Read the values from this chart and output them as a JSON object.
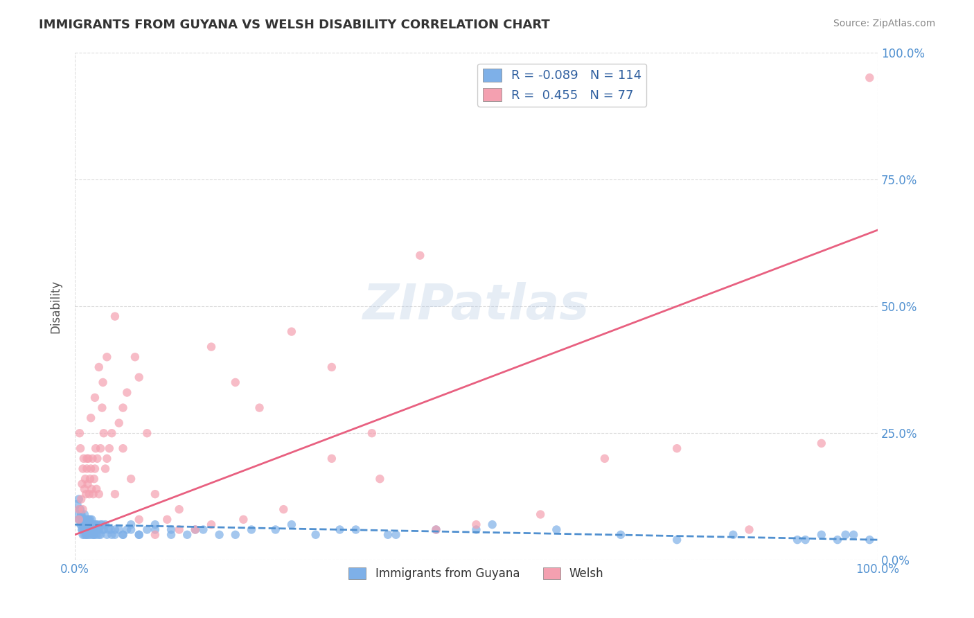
{
  "title": "IMMIGRANTS FROM GUYANA VS WELSH DISABILITY CORRELATION CHART",
  "source": "Source: ZipAtlas.com",
  "xlabel": "",
  "ylabel": "Disability",
  "xlim": [
    0.0,
    1.0
  ],
  "ylim": [
    0.0,
    1.0
  ],
  "xtick_labels": [
    "0.0%",
    "100.0%"
  ],
  "ytick_labels": [
    "0.0%",
    "25.0%",
    "50.0%",
    "75.0%",
    "100.0%"
  ],
  "ytick_positions": [
    0.0,
    0.25,
    0.5,
    0.75,
    1.0
  ],
  "blue_color": "#7EB0E8",
  "pink_color": "#F4A0B0",
  "blue_line_color": "#5090D0",
  "pink_line_color": "#E86080",
  "legend_R_blue": "-0.089",
  "legend_N_blue": "114",
  "legend_R_pink": "0.455",
  "legend_N_pink": "77",
  "watermark": "ZIPatlas",
  "blue_scatter_x": [
    0.005,
    0.006,
    0.007,
    0.008,
    0.008,
    0.009,
    0.009,
    0.01,
    0.01,
    0.011,
    0.011,
    0.012,
    0.012,
    0.013,
    0.013,
    0.014,
    0.014,
    0.015,
    0.015,
    0.016,
    0.016,
    0.017,
    0.017,
    0.018,
    0.018,
    0.019,
    0.019,
    0.02,
    0.02,
    0.021,
    0.022,
    0.022,
    0.023,
    0.024,
    0.025,
    0.026,
    0.027,
    0.028,
    0.03,
    0.032,
    0.034,
    0.036,
    0.04,
    0.045,
    0.05,
    0.055,
    0.06,
    0.065,
    0.07,
    0.08,
    0.09,
    0.1,
    0.12,
    0.14,
    0.16,
    0.2,
    0.25,
    0.3,
    0.35,
    0.4,
    0.5,
    0.003,
    0.004,
    0.005,
    0.006,
    0.007,
    0.008,
    0.009,
    0.01,
    0.011,
    0.012,
    0.013,
    0.014,
    0.015,
    0.016,
    0.017,
    0.018,
    0.019,
    0.02,
    0.022,
    0.024,
    0.026,
    0.028,
    0.03,
    0.032,
    0.035,
    0.038,
    0.042,
    0.046,
    0.05,
    0.06,
    0.07,
    0.08,
    0.1,
    0.12,
    0.15,
    0.18,
    0.22,
    0.27,
    0.33,
    0.39,
    0.45,
    0.52,
    0.6,
    0.68,
    0.75,
    0.82,
    0.9,
    0.96,
    0.99,
    0.97,
    0.95,
    0.93,
    0.91
  ],
  "blue_scatter_y": [
    0.12,
    0.08,
    0.1,
    0.07,
    0.09,
    0.06,
    0.08,
    0.05,
    0.07,
    0.06,
    0.08,
    0.05,
    0.07,
    0.06,
    0.08,
    0.05,
    0.07,
    0.06,
    0.05,
    0.07,
    0.06,
    0.08,
    0.05,
    0.07,
    0.06,
    0.08,
    0.05,
    0.07,
    0.06,
    0.08,
    0.05,
    0.07,
    0.06,
    0.05,
    0.07,
    0.06,
    0.05,
    0.07,
    0.06,
    0.05,
    0.07,
    0.06,
    0.05,
    0.06,
    0.05,
    0.06,
    0.05,
    0.06,
    0.07,
    0.05,
    0.06,
    0.07,
    0.06,
    0.05,
    0.06,
    0.05,
    0.06,
    0.05,
    0.06,
    0.05,
    0.06,
    0.11,
    0.09,
    0.08,
    0.1,
    0.07,
    0.09,
    0.06,
    0.08,
    0.07,
    0.09,
    0.06,
    0.08,
    0.07,
    0.06,
    0.08,
    0.07,
    0.06,
    0.07,
    0.06,
    0.05,
    0.07,
    0.06,
    0.05,
    0.07,
    0.06,
    0.07,
    0.06,
    0.05,
    0.06,
    0.05,
    0.06,
    0.05,
    0.06,
    0.05,
    0.06,
    0.05,
    0.06,
    0.07,
    0.06,
    0.05,
    0.06,
    0.07,
    0.06,
    0.05,
    0.04,
    0.05,
    0.04,
    0.05,
    0.04,
    0.05,
    0.04,
    0.05,
    0.04
  ],
  "pink_scatter_x": [
    0.005,
    0.006,
    0.007,
    0.008,
    0.009,
    0.01,
    0.011,
    0.012,
    0.013,
    0.014,
    0.015,
    0.016,
    0.017,
    0.018,
    0.019,
    0.02,
    0.021,
    0.022,
    0.023,
    0.024,
    0.025,
    0.026,
    0.027,
    0.028,
    0.03,
    0.032,
    0.034,
    0.036,
    0.038,
    0.04,
    0.043,
    0.046,
    0.05,
    0.055,
    0.06,
    0.065,
    0.07,
    0.075,
    0.08,
    0.09,
    0.1,
    0.115,
    0.13,
    0.15,
    0.17,
    0.2,
    0.23,
    0.27,
    0.32,
    0.37,
    0.43,
    0.5,
    0.58,
    0.66,
    0.75,
    0.84,
    0.93,
    0.005,
    0.01,
    0.015,
    0.02,
    0.025,
    0.03,
    0.035,
    0.04,
    0.05,
    0.06,
    0.08,
    0.1,
    0.13,
    0.17,
    0.21,
    0.26,
    0.32,
    0.38,
    0.45,
    0.99
  ],
  "pink_scatter_y": [
    0.1,
    0.25,
    0.22,
    0.12,
    0.15,
    0.18,
    0.2,
    0.14,
    0.16,
    0.13,
    0.18,
    0.15,
    0.2,
    0.13,
    0.16,
    0.18,
    0.14,
    0.2,
    0.13,
    0.16,
    0.18,
    0.22,
    0.14,
    0.2,
    0.13,
    0.22,
    0.3,
    0.25,
    0.18,
    0.2,
    0.22,
    0.25,
    0.13,
    0.27,
    0.3,
    0.33,
    0.16,
    0.4,
    0.36,
    0.25,
    0.13,
    0.08,
    0.1,
    0.06,
    0.42,
    0.35,
    0.3,
    0.45,
    0.38,
    0.25,
    0.6,
    0.07,
    0.09,
    0.2,
    0.22,
    0.06,
    0.23,
    0.08,
    0.1,
    0.2,
    0.28,
    0.32,
    0.38,
    0.35,
    0.4,
    0.48,
    0.22,
    0.08,
    0.05,
    0.06,
    0.07,
    0.08,
    0.1,
    0.2,
    0.16,
    0.06,
    0.95
  ],
  "blue_line_x": [
    0.0,
    1.0
  ],
  "blue_line_y_start": 0.07,
  "blue_line_y_end": 0.04,
  "pink_line_x": [
    0.0,
    1.0
  ],
  "pink_line_y_start": 0.05,
  "pink_line_y_end": 0.65,
  "background_color": "#ffffff",
  "grid_color": "#cccccc",
  "title_color": "#333333",
  "axis_label_color": "#555555",
  "tick_label_color_blue": "#5090D0",
  "tick_label_color_right": "#5090D0",
  "source_color": "#888888"
}
